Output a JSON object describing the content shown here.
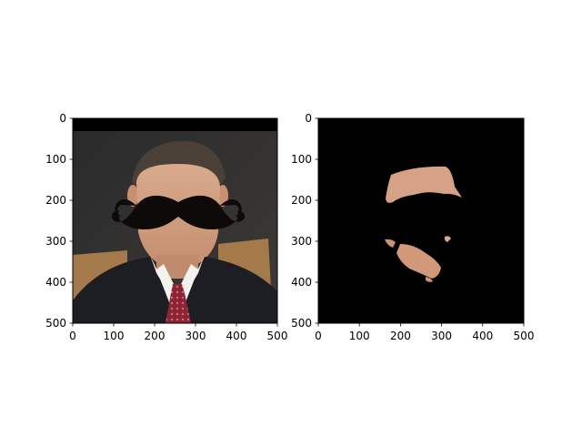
{
  "chart_data": [
    {
      "type": "image",
      "content": "photo of a man in a suit and red tie with a large black mustache overlay",
      "xlim": [
        0,
        500
      ],
      "ylim": [
        500,
        0
      ],
      "xticks": [
        0,
        100,
        200,
        300,
        400,
        500
      ],
      "yticks": [
        0,
        100,
        200,
        300,
        400,
        500
      ],
      "title": "",
      "xlabel": "",
      "ylabel": ""
    },
    {
      "type": "image",
      "content": "skin-segmentation mask: skin-colored regions on black background",
      "xlim": [
        0,
        500
      ],
      "ylim": [
        500,
        0
      ],
      "xticks": [
        0,
        100,
        200,
        300,
        400,
        500
      ],
      "yticks": [
        0,
        100,
        200,
        300,
        400,
        500
      ],
      "title": "",
      "xlabel": "",
      "ylabel": ""
    }
  ]
}
